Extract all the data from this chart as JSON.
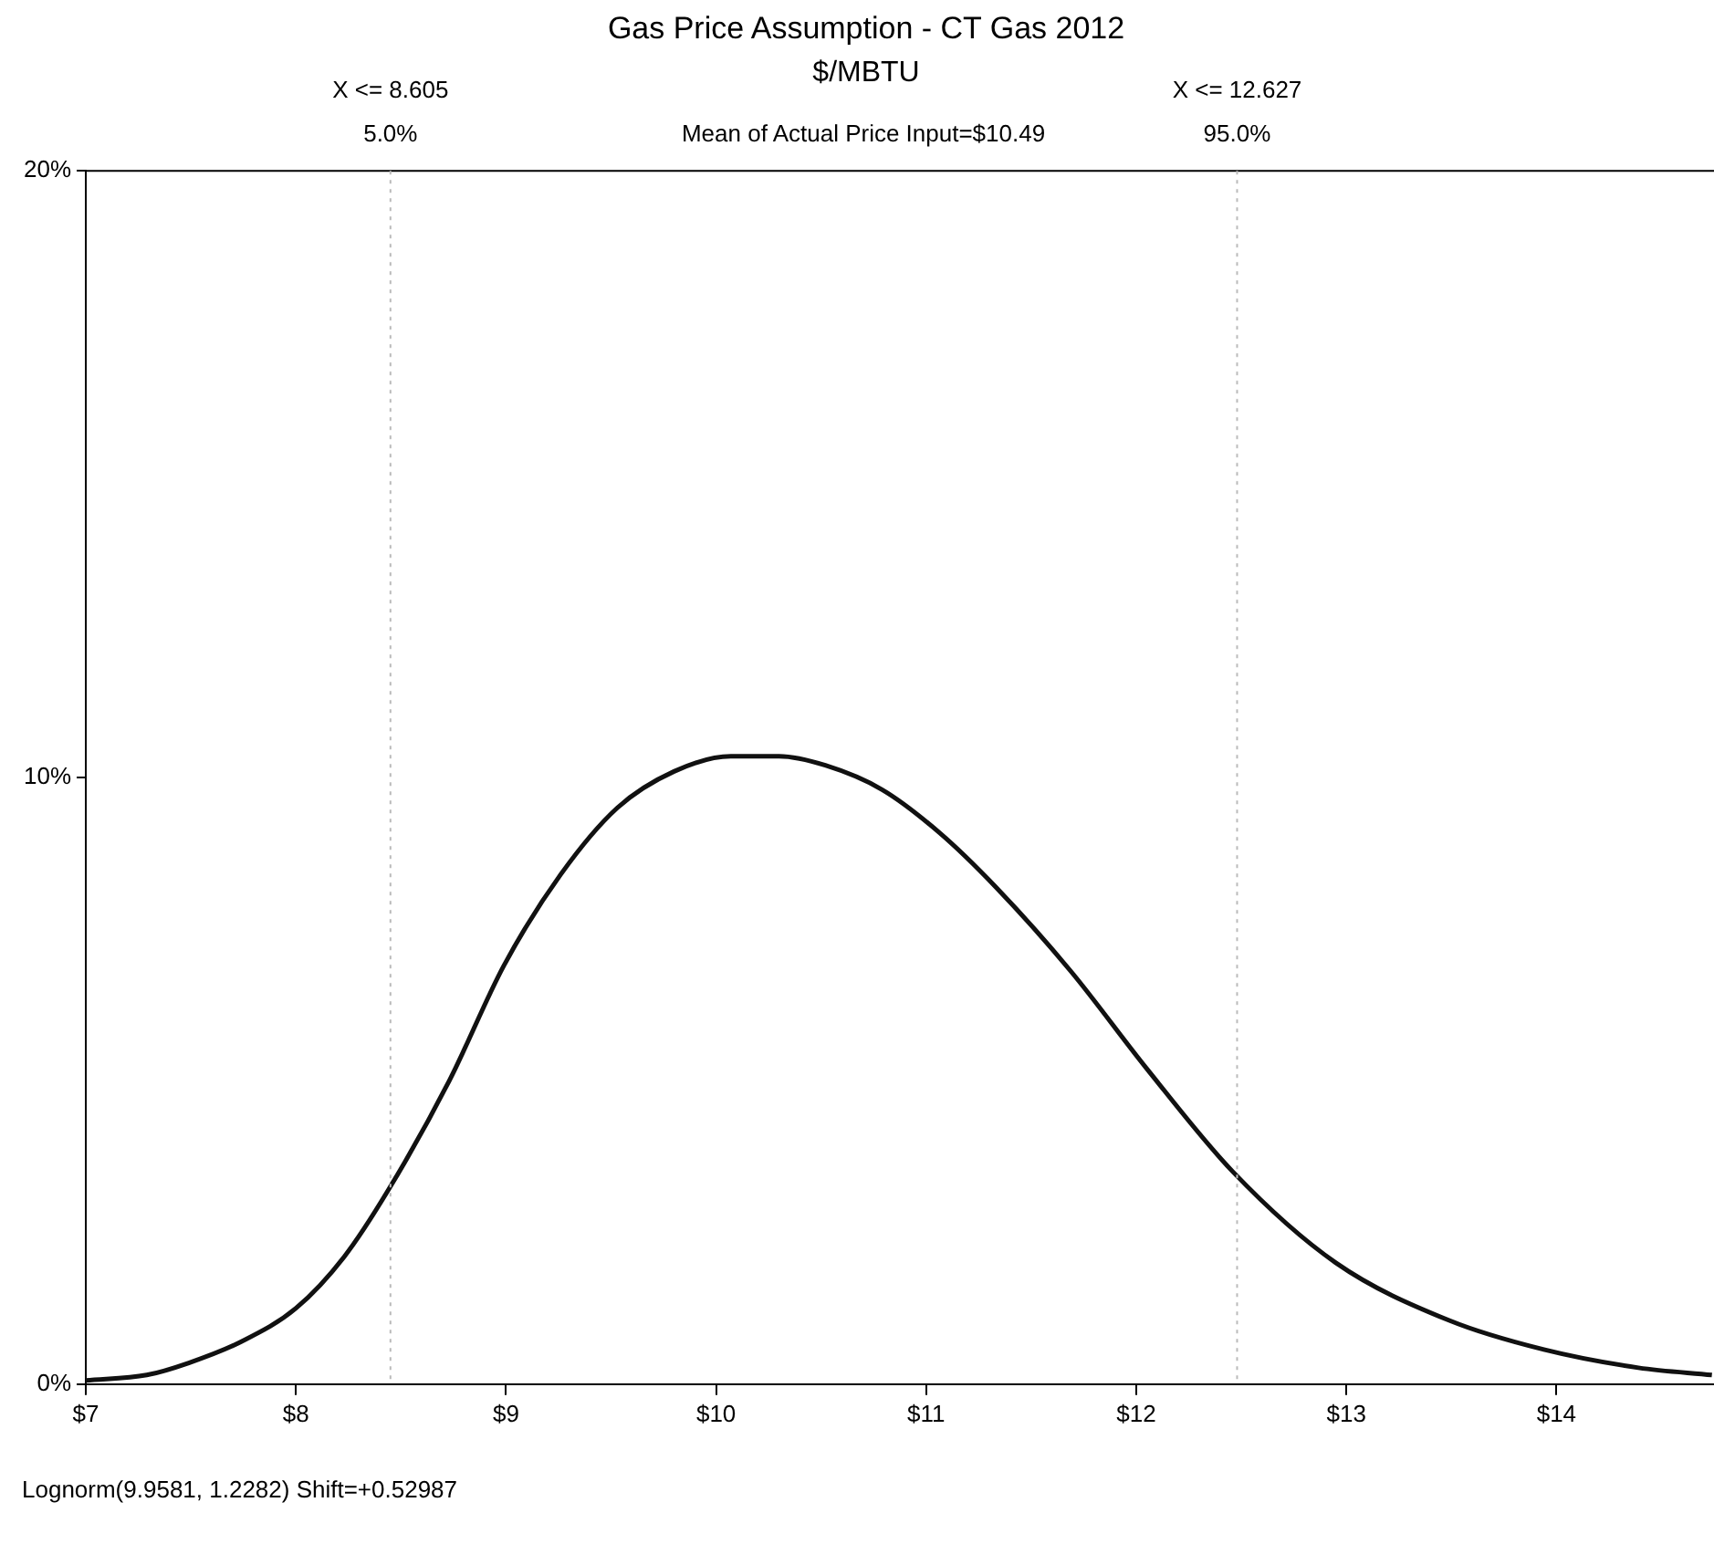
{
  "chart_data": {
    "type": "line",
    "title": "Gas Price Assumption - CT Gas 2012",
    "subtitle": "$/MBTU",
    "series": [
      {
        "color": "#111111",
        "x": [
          7.0,
          7.29,
          7.49,
          7.74,
          8.0,
          8.23,
          8.44,
          8.73,
          8.99,
          9.26,
          9.53,
          9.8,
          10.07,
          10.3,
          10.52,
          10.79,
          11.06,
          11.33,
          11.69,
          12.05,
          12.46,
          12.95,
          13.49,
          13.94,
          14.39,
          14.74
        ],
        "values": [
          0.06,
          0.15,
          0.35,
          0.7,
          1.25,
          2.1,
          3.2,
          5.0,
          6.9,
          8.4,
          9.5,
          10.1,
          10.35,
          10.35,
          10.2,
          9.8,
          9.1,
          8.2,
          6.8,
          5.2,
          3.5,
          2.0,
          1.05,
          0.57,
          0.27,
          0.15
        ]
      }
    ],
    "xlim": [
      7,
      14.75
    ],
    "xticks": [
      {
        "value": 7,
        "label": "$7"
      },
      {
        "value": 8,
        "label": "$8"
      },
      {
        "value": 9,
        "label": "$9"
      },
      {
        "value": 10,
        "label": "$10"
      },
      {
        "value": 11,
        "label": "$11"
      },
      {
        "value": 12,
        "label": "$12"
      },
      {
        "value": 13,
        "label": "$13"
      },
      {
        "value": 14,
        "label": "$14"
      }
    ],
    "ylim": [
      0,
      20
    ],
    "yticks": [
      {
        "value": 0,
        "label": "0%"
      },
      {
        "value": 10,
        "label": "10%"
      },
      {
        "value": 20,
        "label": "20%"
      }
    ],
    "ref_lines": [
      {
        "axis": "x",
        "value": 8.45,
        "color": "#bbbbbb",
        "line_style": "dotted"
      },
      {
        "axis": "x",
        "value": 12.48,
        "color": "#bbbbbb",
        "line_style": "dotted"
      }
    ],
    "annotations": [
      "X <= 8.605",
      "5.0%",
      "Mean of Actual Price Input=$10.49",
      "X <= 12.627",
      "95.0%",
      "Lognorm(9.9581, 1.2282) Shift=+0.52987"
    ],
    "grid": false,
    "legend": false,
    "marker": "none",
    "line_style": "solid"
  }
}
